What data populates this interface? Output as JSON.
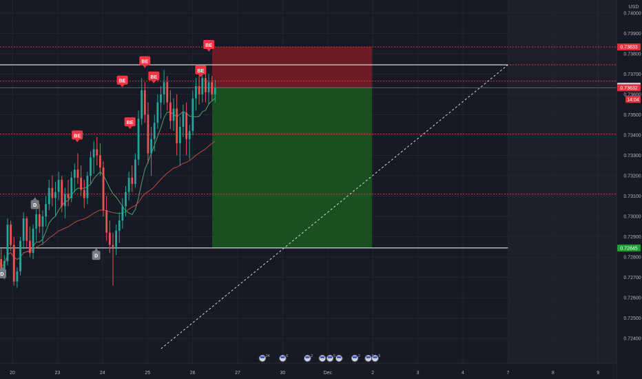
{
  "chart_data": {
    "type": "candlestick",
    "instrument_currency": "USD",
    "x_tick_labels": [
      "20",
      "23",
      "24",
      "25",
      "26",
      "27",
      "30",
      "Dec",
      "2",
      "3",
      "4",
      "7",
      "8",
      "9"
    ],
    "y_tick_labels": [
      "0.74000",
      "0.73900",
      "0.73800",
      "0.73700",
      "0.73600",
      "0.73500",
      "0.73400",
      "0.73300",
      "0.73200",
      "0.73100",
      "0.73000",
      "0.72900",
      "0.72800",
      "0.72700",
      "0.72600",
      "0.72500",
      "0.72400"
    ],
    "ylim": [
      0.7235,
      0.7405
    ],
    "price_tags": [
      {
        "label": "0.73833",
        "value": 0.73833,
        "color": "#e0323c",
        "text_color": "#ffffff"
      },
      {
        "label": "0.73640",
        "value": 0.7364,
        "color": "#d1d4dc",
        "text_color": "#131722"
      },
      {
        "label": "0.73632",
        "value": 0.73632,
        "color": "#e0323c",
        "text_color": "#ffffff"
      },
      {
        "label": "14:04",
        "value": 0.73575,
        "color": "#e0323c",
        "text_color": "#ffffff"
      },
      {
        "label": "0.72845",
        "value": 0.72845,
        "color": "#1e9e34",
        "text_color": "#ffffff"
      }
    ],
    "horizontal_levels": {
      "white_lines": [
        0.73745,
        0.72845
      ],
      "red_dotted": [
        0.73833,
        0.73745,
        0.73665,
        0.73405,
        0.7311
      ],
      "gray_solid": [
        0.73632
      ]
    },
    "risk_reward_position": {
      "entry": 0.73632,
      "stop": 0.73833,
      "target": 0.72845,
      "stop_zone_color": "#8a1c24",
      "target_zone_color": "#1b5e20"
    },
    "trend_line": {
      "from_date_index": 3.3,
      "from_value": 0.7235,
      "to_date_index": 11.0,
      "to_value": 0.73745
    },
    "markers": [
      {
        "label": "BE",
        "kind": "sell",
        "t": 1.44,
        "price": 0.73395
      },
      {
        "label": "BE",
        "kind": "sell",
        "t": 2.44,
        "price": 0.73665
      },
      {
        "label": "BE",
        "kind": "sell",
        "t": 2.61,
        "price": 0.7346
      },
      {
        "label": "BE",
        "kind": "sell",
        "t": 2.94,
        "price": 0.7376
      },
      {
        "label": "BE",
        "kind": "sell",
        "t": 3.14,
        "price": 0.73685
      },
      {
        "label": "BE",
        "kind": "sell",
        "t": 4.18,
        "price": 0.73715
      },
      {
        "label": "BE",
        "kind": "sell",
        "t": 4.36,
        "price": 0.7384
      },
      {
        "label": "D",
        "kind": "buy",
        "t": -0.23,
        "price": 0.7272
      },
      {
        "label": "D",
        "kind": "buy",
        "t": 0.5,
        "price": 0.7306
      },
      {
        "label": "D",
        "kind": "buy",
        "t": 1.86,
        "price": 0.7281
      }
    ],
    "event_icons": [
      {
        "t": 5.55,
        "count": "24"
      },
      {
        "t": 6.0,
        "count": "6"
      },
      {
        "t": 6.55,
        "count": "2"
      },
      {
        "t": 6.88,
        "count": ""
      },
      {
        "t": 7.05,
        "count": "5"
      },
      {
        "t": 7.25,
        "count": ""
      },
      {
        "t": 7.6,
        "count": "2"
      },
      {
        "t": 7.9,
        "count": "6"
      },
      {
        "t": 8.05,
        "count": "5"
      }
    ],
    "moving_averages": [
      {
        "color": "#5a9a68",
        "period_hint": "fast"
      },
      {
        "color": "#c0473f",
        "period_hint": "slow"
      }
    ],
    "candles": [
      [
        0.7282,
        0.7288,
        0.7276,
        0.7279
      ],
      [
        0.7279,
        0.7284,
        0.727,
        0.7272
      ],
      [
        0.7272,
        0.7281,
        0.7269,
        0.7278
      ],
      [
        0.7278,
        0.7299,
        0.7276,
        0.7296
      ],
      [
        0.7296,
        0.7298,
        0.7283,
        0.7286
      ],
      [
        0.7286,
        0.729,
        0.7266,
        0.7268
      ],
      [
        0.7268,
        0.7275,
        0.7265,
        0.7273
      ],
      [
        0.7273,
        0.729,
        0.7271,
        0.7288
      ],
      [
        0.7288,
        0.7302,
        0.7284,
        0.7299
      ],
      [
        0.7299,
        0.73,
        0.7285,
        0.7288
      ],
      [
        0.7288,
        0.7295,
        0.728,
        0.7282
      ],
      [
        0.7282,
        0.7296,
        0.7279,
        0.7294
      ],
      [
        0.7294,
        0.7305,
        0.7288,
        0.7301
      ],
      [
        0.7301,
        0.7306,
        0.7292,
        0.7295
      ],
      [
        0.7295,
        0.7303,
        0.7286,
        0.73
      ],
      [
        0.73,
        0.731,
        0.7295,
        0.7306
      ],
      [
        0.7306,
        0.7318,
        0.7303,
        0.7314
      ],
      [
        0.7314,
        0.732,
        0.7305,
        0.7309
      ],
      [
        0.7309,
        0.7317,
        0.73,
        0.7312
      ],
      [
        0.7312,
        0.7322,
        0.7308,
        0.7318
      ],
      [
        0.7318,
        0.732,
        0.7302,
        0.7305
      ],
      [
        0.7305,
        0.7314,
        0.7299,
        0.7311
      ],
      [
        0.7311,
        0.7318,
        0.7305,
        0.7309
      ],
      [
        0.7309,
        0.7322,
        0.7307,
        0.7319
      ],
      [
        0.7319,
        0.7326,
        0.7312,
        0.7323
      ],
      [
        0.7323,
        0.7331,
        0.7316,
        0.7319
      ],
      [
        0.7319,
        0.7325,
        0.731,
        0.7313
      ],
      [
        0.7313,
        0.7318,
        0.7304,
        0.7309
      ],
      [
        0.7309,
        0.7322,
        0.7306,
        0.732
      ],
      [
        0.732,
        0.7332,
        0.7316,
        0.7329
      ],
      [
        0.7329,
        0.7337,
        0.7321,
        0.7333
      ],
      [
        0.7333,
        0.7339,
        0.7325,
        0.733
      ],
      [
        0.733,
        0.7336,
        0.732,
        0.7324
      ],
      [
        0.7324,
        0.7327,
        0.73,
        0.7303
      ],
      [
        0.7303,
        0.731,
        0.7288,
        0.7292
      ],
      [
        0.7292,
        0.7298,
        0.7282,
        0.7286
      ],
      [
        0.7286,
        0.7292,
        0.7266,
        0.7285
      ],
      [
        0.7285,
        0.7296,
        0.7281,
        0.7293
      ],
      [
        0.7293,
        0.7302,
        0.7287,
        0.7298
      ],
      [
        0.7298,
        0.7309,
        0.7294,
        0.7305
      ],
      [
        0.7305,
        0.7315,
        0.73,
        0.7312
      ],
      [
        0.7312,
        0.7322,
        0.7308,
        0.7319
      ],
      [
        0.7319,
        0.7325,
        0.7312,
        0.7316
      ],
      [
        0.7316,
        0.7331,
        0.7314,
        0.7328
      ],
      [
        0.7328,
        0.7352,
        0.7325,
        0.7348
      ],
      [
        0.7348,
        0.7368,
        0.7345,
        0.7362
      ],
      [
        0.7362,
        0.7366,
        0.7346,
        0.735
      ],
      [
        0.735,
        0.7356,
        0.7326,
        0.7331
      ],
      [
        0.7331,
        0.7344,
        0.732,
        0.7338
      ],
      [
        0.7338,
        0.735,
        0.7332,
        0.7346
      ],
      [
        0.7346,
        0.736,
        0.7343,
        0.7356
      ],
      [
        0.7356,
        0.7364,
        0.7348,
        0.736
      ],
      [
        0.736,
        0.7372,
        0.7355,
        0.7366
      ],
      [
        0.7366,
        0.7369,
        0.7352,
        0.7356
      ],
      [
        0.7356,
        0.7362,
        0.7343,
        0.7347
      ],
      [
        0.7347,
        0.7358,
        0.7342,
        0.7353
      ],
      [
        0.7353,
        0.736,
        0.733,
        0.7336
      ],
      [
        0.7336,
        0.7349,
        0.7325,
        0.7344
      ],
      [
        0.7344,
        0.7355,
        0.7339,
        0.7351
      ],
      [
        0.7351,
        0.7356,
        0.733,
        0.7338
      ],
      [
        0.7338,
        0.7345,
        0.7328,
        0.7342
      ],
      [
        0.7342,
        0.7362,
        0.734,
        0.7358
      ],
      [
        0.7358,
        0.7368,
        0.7352,
        0.7364
      ],
      [
        0.7364,
        0.7371,
        0.7355,
        0.736
      ],
      [
        0.736,
        0.7372,
        0.7356,
        0.7368
      ],
      [
        0.7368,
        0.7372,
        0.7356,
        0.7361
      ],
      [
        0.7361,
        0.737,
        0.7355,
        0.7366
      ],
      [
        0.7366,
        0.7369,
        0.7357,
        0.736
      ],
      [
        0.736,
        0.7367,
        0.7356,
        0.7363
      ]
    ]
  }
}
